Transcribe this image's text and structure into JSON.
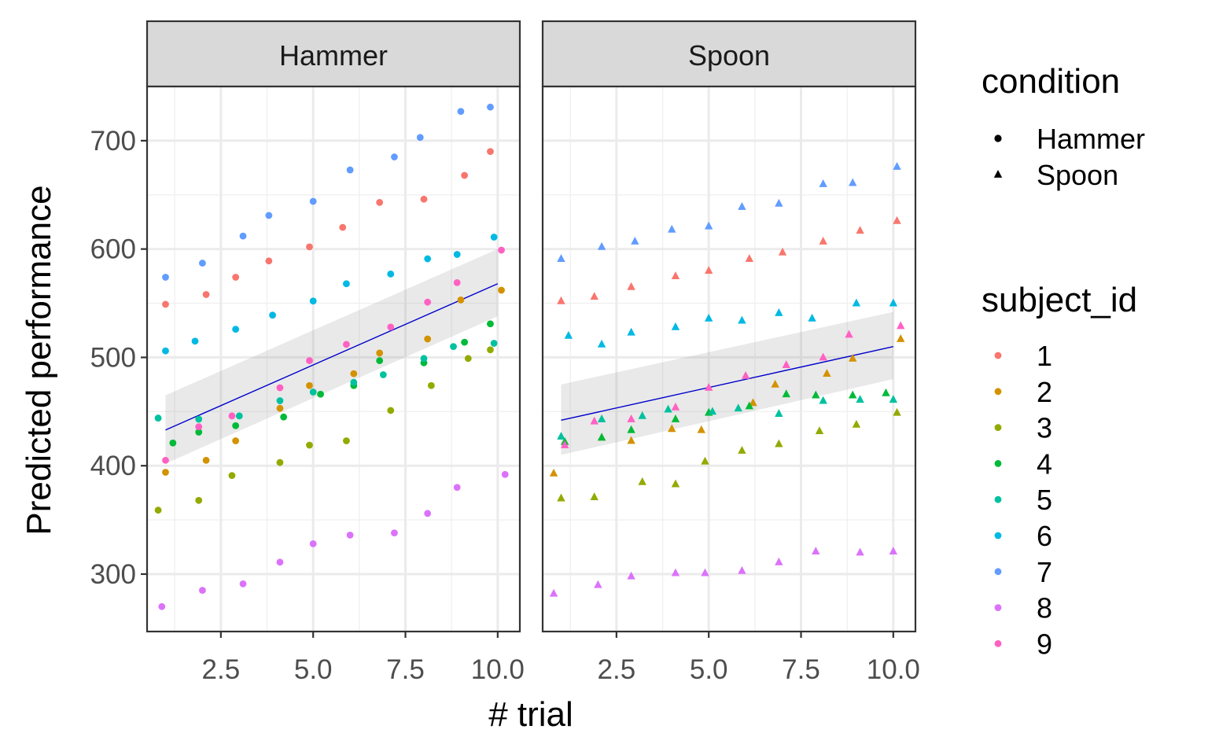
{
  "chart_data": {
    "type": "scatter",
    "facet_variable": "condition",
    "xlabel": "# trial",
    "ylabel": "Predicted performance",
    "xlim": [
      0.5,
      10.6
    ],
    "ylim": [
      247,
      750
    ],
    "x_ticks": [
      2.5,
      5.0,
      7.5,
      10.0
    ],
    "x_tick_labels": [
      "2.5",
      "5.0",
      "7.5",
      "10.0"
    ],
    "y_ticks": [
      300,
      400,
      500,
      600,
      700
    ],
    "y_tick_labels": [
      "300",
      "400",
      "500",
      "600",
      "700"
    ],
    "grid": true,
    "legend_position": "right",
    "legend": {
      "shape_title": "condition",
      "shape_entries": [
        {
          "label": "Hammer",
          "shape": "circle"
        },
        {
          "label": "Spoon",
          "shape": "triangle"
        }
      ],
      "color_title": "subject_id",
      "color_entries": [
        {
          "label": "1",
          "color": "#F8766D"
        },
        {
          "label": "2",
          "color": "#D39200"
        },
        {
          "label": "3",
          "color": "#93AA00"
        },
        {
          "label": "4",
          "color": "#00BA38"
        },
        {
          "label": "5",
          "color": "#00C19F"
        },
        {
          "label": "6",
          "color": "#00B9E3"
        },
        {
          "label": "7",
          "color": "#619CFF"
        },
        {
          "label": "8",
          "color": "#DB72FB"
        },
        {
          "label": "9",
          "color": "#FF61C3"
        }
      ]
    },
    "trend_line": {
      "color": "#0000CC",
      "ribbon_color": "#999999"
    },
    "panels": [
      {
        "label": "Hammer",
        "shape": "circle",
        "fit": {
          "x": [
            1,
            10
          ],
          "y": [
            433,
            568
          ],
          "lower": [
            402,
            538
          ],
          "upper": [
            465,
            600
          ]
        },
        "series": [
          {
            "subject": "1",
            "color": "#F8766D",
            "points": [
              [
                1.0,
                549
              ],
              [
                2.1,
                558
              ],
              [
                2.9,
                574
              ],
              [
                3.8,
                589
              ],
              [
                4.9,
                602
              ],
              [
                5.8,
                620
              ],
              [
                6.8,
                643
              ],
              [
                8.0,
                646
              ],
              [
                9.1,
                668
              ],
              [
                9.8,
                690
              ]
            ]
          },
          {
            "subject": "2",
            "color": "#D39200",
            "points": [
              [
                1.0,
                394
              ],
              [
                2.1,
                405
              ],
              [
                2.9,
                423
              ],
              [
                4.1,
                453
              ],
              [
                4.9,
                474
              ],
              [
                6.1,
                485
              ],
              [
                6.8,
                504
              ],
              [
                8.1,
                517
              ],
              [
                9.0,
                553
              ],
              [
                10.1,
                562
              ]
            ]
          },
          {
            "subject": "3",
            "color": "#93AA00",
            "points": [
              [
                0.8,
                359
              ],
              [
                1.9,
                368
              ],
              [
                2.8,
                391
              ],
              [
                4.1,
                403
              ],
              [
                4.9,
                419
              ],
              [
                5.9,
                423
              ],
              [
                7.1,
                451
              ],
              [
                8.2,
                474
              ],
              [
                9.2,
                499
              ],
              [
                9.8,
                507
              ]
            ]
          },
          {
            "subject": "4",
            "color": "#00BA38",
            "points": [
              [
                1.2,
                421
              ],
              [
                1.9,
                431
              ],
              [
                2.9,
                437
              ],
              [
                4.2,
                445
              ],
              [
                5.2,
                466
              ],
              [
                6.1,
                474
              ],
              [
                6.8,
                497
              ],
              [
                8.0,
                495
              ],
              [
                9.1,
                514
              ],
              [
                9.8,
                531
              ]
            ]
          },
          {
            "subject": "5",
            "color": "#00C19F",
            "points": [
              [
                0.8,
                444
              ],
              [
                1.9,
                443
              ],
              [
                3.0,
                446
              ],
              [
                4.1,
                460
              ],
              [
                5.0,
                468
              ],
              [
                6.1,
                477
              ],
              [
                6.9,
                484
              ],
              [
                8.0,
                499
              ],
              [
                8.8,
                510
              ],
              [
                9.9,
                513
              ]
            ]
          },
          {
            "subject": "6",
            "color": "#00B9E3",
            "points": [
              [
                1.0,
                506
              ],
              [
                1.8,
                515
              ],
              [
                2.9,
                526
              ],
              [
                3.9,
                539
              ],
              [
                5.0,
                552
              ],
              [
                5.9,
                568
              ],
              [
                7.1,
                577
              ],
              [
                8.1,
                591
              ],
              [
                8.9,
                595
              ],
              [
                9.9,
                611
              ]
            ]
          },
          {
            "subject": "7",
            "color": "#619CFF",
            "points": [
              [
                1.0,
                574
              ],
              [
                2.0,
                587
              ],
              [
                3.1,
                612
              ],
              [
                3.8,
                631
              ],
              [
                5.0,
                644
              ],
              [
                6.0,
                673
              ],
              [
                7.2,
                685
              ],
              [
                7.9,
                703
              ],
              [
                9.0,
                727
              ],
              [
                9.8,
                731
              ]
            ]
          },
          {
            "subject": "8",
            "color": "#DB72FB",
            "points": [
              [
                0.9,
                270
              ],
              [
                2.0,
                285
              ],
              [
                3.1,
                291
              ],
              [
                4.1,
                311
              ],
              [
                5.0,
                328
              ],
              [
                6.0,
                336
              ],
              [
                7.2,
                338
              ],
              [
                8.1,
                356
              ],
              [
                8.9,
                380
              ],
              [
                10.2,
                392
              ]
            ]
          },
          {
            "subject": "9",
            "color": "#FF61C3",
            "points": [
              [
                1.0,
                405
              ],
              [
                1.9,
                436
              ],
              [
                2.8,
                446
              ],
              [
                4.1,
                472
              ],
              [
                4.9,
                497
              ],
              [
                5.9,
                512
              ],
              [
                7.1,
                528
              ],
              [
                8.1,
                551
              ],
              [
                8.9,
                569
              ],
              [
                10.1,
                599
              ]
            ]
          }
        ]
      },
      {
        "label": "Spoon",
        "shape": "triangle",
        "fit": {
          "x": [
            1,
            10
          ],
          "y": [
            442,
            510
          ],
          "lower": [
            410,
            480
          ],
          "upper": [
            475,
            542
          ]
        },
        "series": [
          {
            "subject": "1",
            "color": "#F8766D",
            "points": [
              [
                1.0,
                552
              ],
              [
                1.9,
                556
              ],
              [
                2.9,
                565
              ],
              [
                4.1,
                575
              ],
              [
                5.0,
                580
              ],
              [
                6.1,
                591
              ],
              [
                7.0,
                597
              ],
              [
                8.1,
                607
              ],
              [
                9.1,
                617
              ],
              [
                10.1,
                626
              ]
            ]
          },
          {
            "subject": "2",
            "color": "#D39200",
            "points": [
              [
                0.8,
                393
              ],
              [
                2.1,
                426
              ],
              [
                2.9,
                423
              ],
              [
                4.0,
                434
              ],
              [
                4.8,
                433
              ],
              [
                6.2,
                458
              ],
              [
                6.8,
                475
              ],
              [
                8.2,
                485
              ],
              [
                8.9,
                499
              ],
              [
                10.2,
                517
              ]
            ]
          },
          {
            "subject": "3",
            "color": "#93AA00",
            "points": [
              [
                1.0,
                370
              ],
              [
                1.9,
                371
              ],
              [
                3.2,
                385
              ],
              [
                4.1,
                383
              ],
              [
                4.9,
                404
              ],
              [
                5.9,
                414
              ],
              [
                6.9,
                420
              ],
              [
                8.0,
                432
              ],
              [
                9.0,
                438
              ],
              [
                10.1,
                449
              ]
            ]
          },
          {
            "subject": "4",
            "color": "#00BA38",
            "points": [
              [
                1.1,
                422
              ],
              [
                2.1,
                426
              ],
              [
                2.9,
                433
              ],
              [
                4.1,
                443
              ],
              [
                5.0,
                449
              ],
              [
                6.1,
                455
              ],
              [
                7.1,
                466
              ],
              [
                7.9,
                465
              ],
              [
                8.9,
                465
              ],
              [
                9.8,
                467
              ]
            ]
          },
          {
            "subject": "5",
            "color": "#00C19F",
            "points": [
              [
                1.0,
                427
              ],
              [
                2.1,
                443
              ],
              [
                3.2,
                446
              ],
              [
                3.9,
                452
              ],
              [
                5.1,
                450
              ],
              [
                5.8,
                453
              ],
              [
                6.9,
                448
              ],
              [
                8.1,
                460
              ],
              [
                9.1,
                461
              ],
              [
                10.0,
                461
              ]
            ]
          },
          {
            "subject": "6",
            "color": "#00B9E3",
            "points": [
              [
                1.2,
                520
              ],
              [
                2.1,
                512
              ],
              [
                2.9,
                523
              ],
              [
                4.1,
                528
              ],
              [
                5.0,
                536
              ],
              [
                5.9,
                534
              ],
              [
                6.9,
                541
              ],
              [
                7.8,
                536
              ],
              [
                9.0,
                550
              ],
              [
                10.0,
                550
              ]
            ]
          },
          {
            "subject": "7",
            "color": "#619CFF",
            "points": [
              [
                1.0,
                591
              ],
              [
                2.1,
                602
              ],
              [
                3.0,
                607
              ],
              [
                4.0,
                618
              ],
              [
                5.0,
                621
              ],
              [
                5.9,
                639
              ],
              [
                6.9,
                642
              ],
              [
                8.1,
                660
              ],
              [
                8.9,
                661
              ],
              [
                10.1,
                676
              ]
            ]
          },
          {
            "subject": "8",
            "color": "#DB72FB",
            "points": [
              [
                0.8,
                282
              ],
              [
                2.0,
                290
              ],
              [
                2.9,
                298
              ],
              [
                4.1,
                301
              ],
              [
                4.9,
                301
              ],
              [
                5.9,
                303
              ],
              [
                6.9,
                311
              ],
              [
                7.9,
                321
              ],
              [
                9.1,
                320
              ],
              [
                10.0,
                321
              ]
            ]
          },
          {
            "subject": "9",
            "color": "#FF61C3",
            "points": [
              [
                1.1,
                419
              ],
              [
                1.9,
                441
              ],
              [
                2.9,
                443
              ],
              [
                4.1,
                454
              ],
              [
                5.0,
                472
              ],
              [
                6.0,
                483
              ],
              [
                7.1,
                493
              ],
              [
                8.1,
                500
              ],
              [
                8.8,
                521
              ],
              [
                10.2,
                529
              ]
            ]
          }
        ]
      }
    ]
  }
}
